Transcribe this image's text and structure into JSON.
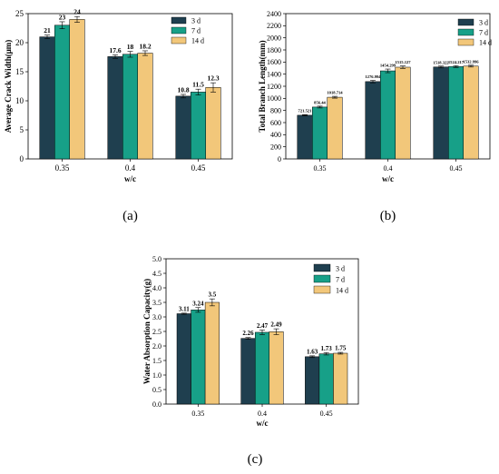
{
  "colors": {
    "3 d": "#1f3f4f",
    "7 d": "#17a088",
    "14 d": "#f2c77a"
  },
  "chart_data": [
    {
      "type": "bar",
      "panel": "(a)",
      "categories": [
        "0.35",
        "0.4",
        "0.45"
      ],
      "xlabel": "w/c",
      "ylabel": "Average Crack Width(μm)",
      "ylim": [
        0,
        25
      ],
      "yticks": [
        "0",
        "5",
        "10",
        "15",
        "20",
        "25"
      ],
      "legend_position": "top-right",
      "series": [
        {
          "name": "3 d",
          "values": [
            21,
            17.6,
            10.8
          ],
          "labels": [
            "21",
            "17.6",
            "10.8"
          ],
          "errors": [
            0.3,
            0.3,
            0.3
          ]
        },
        {
          "name": "7 d",
          "values": [
            23,
            18,
            11.5
          ],
          "labels": [
            "23",
            "18",
            "11.5"
          ],
          "errors": [
            0.6,
            0.5,
            0.5
          ]
        },
        {
          "name": "14 d",
          "values": [
            24,
            18.2,
            12.3
          ],
          "labels": [
            "24",
            "18.2",
            "12.3"
          ],
          "errors": [
            0.5,
            0.4,
            0.8
          ]
        }
      ]
    },
    {
      "type": "bar",
      "panel": "(b)",
      "categories": [
        "0.35",
        "0.4",
        "0.45"
      ],
      "xlabel": "w/c",
      "ylabel": "Total Branch Length(mm)",
      "ylim": [
        0,
        2400
      ],
      "yticks": [
        "0",
        "200",
        "400",
        "600",
        "800",
        "1000",
        "1200",
        "1400",
        "1600",
        "1800",
        "2000",
        "2200",
        "2400"
      ],
      "legend_position": "top-right",
      "series": [
        {
          "name": "3 d",
          "values": [
            721.521,
            1276.994,
            1518.322
          ],
          "labels": [
            "721.521",
            "1276.994",
            "1518.322"
          ],
          "errors": [
            10,
            20,
            15
          ]
        },
        {
          "name": "7 d",
          "values": [
            856.44,
            1454.299,
            1524.217
          ],
          "labels": [
            "856.44",
            "1454.299",
            "1524.217"
          ],
          "errors": [
            15,
            30,
            15
          ]
        },
        {
          "name": "14 d",
          "values": [
            1018.714,
            1515.127,
            1532.996
          ],
          "labels": [
            "1018.714",
            "1515.127",
            "1532.996"
          ],
          "errors": [
            15,
            20,
            15
          ]
        }
      ]
    },
    {
      "type": "bar",
      "panel": "(c)",
      "categories": [
        "0.35",
        "0.4",
        "0.45"
      ],
      "xlabel": "w/c",
      "ylabel": "Water Absorption Capacity(g)",
      "ylim": [
        0,
        5.0
      ],
      "yticks": [
        "0.0",
        "0.5",
        "1.0",
        "1.5",
        "2.0",
        "2.5",
        "3.0",
        "3.5",
        "4.0",
        "4.5",
        "5.0"
      ],
      "legend_position": "top-right",
      "series": [
        {
          "name": "3 d",
          "values": [
            3.11,
            2.26,
            1.63
          ],
          "labels": [
            "3.11",
            "2.26",
            "1.63"
          ],
          "errors": [
            0.02,
            0.03,
            0.03
          ]
        },
        {
          "name": "7 d",
          "values": [
            3.24,
            2.47,
            1.73
          ],
          "labels": [
            "3.24",
            "2.47",
            "1.73"
          ],
          "errors": [
            0.08,
            0.08,
            0.04
          ]
        },
        {
          "name": "14 d",
          "values": [
            3.5,
            2.49,
            1.75
          ],
          "labels": [
            "3.5",
            "2.49",
            "1.75"
          ],
          "errors": [
            0.12,
            0.1,
            0.03
          ]
        }
      ]
    }
  ]
}
